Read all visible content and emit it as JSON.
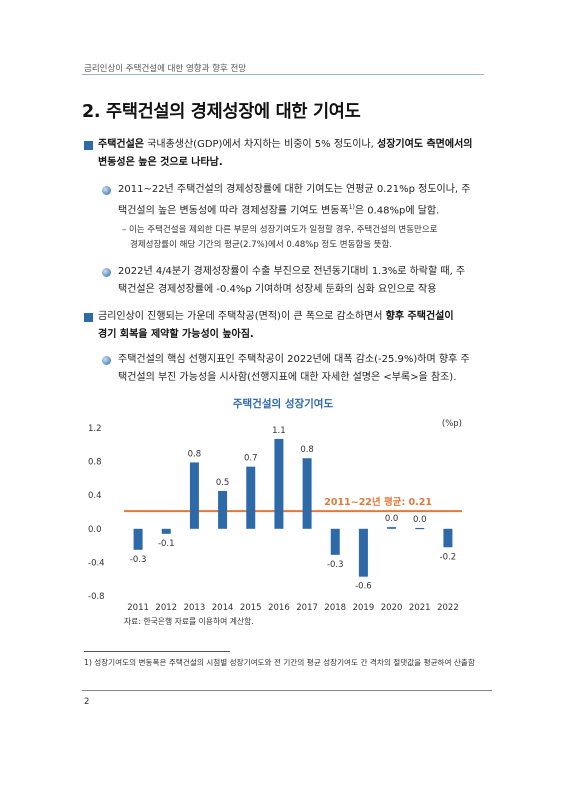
{
  "header": "금리인상이 주택건설에 대한 영향과 향후 전망",
  "section_title": "2. 주택건설의 경제성장에 대한 기여도",
  "b1": {
    "l1_a": "주택건설은",
    "l1_b": " 국내총생산(GDP)에서 차지하는 비중이 5% 정도이나, ",
    "l1_c": "성장기여도 측면에서의",
    "l2": "변동성은 높은 것으로 나타남."
  },
  "s1": {
    "l1": "2011~22년 주택건설의 경제성장률에 대한 기여도는 연평균 0.21%p 정도이나, 주",
    "l2_a": "택건설의 높은 변동성에 따라 경제성장률 기여도 변동폭",
    "l2_sup": "1)",
    "l2_b": "은 0.48%p에 달함."
  },
  "d1": {
    "l1": "– 이는 주택건설을 제외한 다른 부문의 성장기여도가 일정할 경우, 주택건설의 변동만으로",
    "l2": "경제성장률이 해당 기간의 평균(2.7%)에서 0.48%p 정도 변동함을 뜻함."
  },
  "s2": {
    "l1": "2022년 4/4분기 경제성장률이 수출 부진으로 전년동기대비 1.3%로 하락할 때, 주",
    "l2": "택건설은 경제성장률에 -0.4%p 기여하며 성장세 둔화의 심화 요인으로 작용"
  },
  "b2": {
    "l1_a": "금리인상이 진행되는 가운데 주택착공(면적)이 큰 폭으로 감소하면서 ",
    "l1_b": "향후 주택건설이",
    "l2": "경기 회복을 제약할 가능성이 높아짐."
  },
  "s3": {
    "l1": "주택건설의 핵심 선행지표인 주택착공이 2022년에 대폭 감소(-25.9%)하며 향후 주",
    "l2": "택건설의 부진 가능성을 시사함(선행지표에 대한 자세한 설명은 <부록>을 참조)."
  },
  "chart_data": {
    "type": "bar",
    "title": "주택건설의 성장기여도",
    "unit": "(%p)",
    "categories": [
      "2011",
      "2012",
      "2013",
      "2014",
      "2015",
      "2016",
      "2017",
      "2018",
      "2019",
      "2020",
      "2021",
      "2022"
    ],
    "values": [
      -0.25,
      -0.06,
      0.79,
      0.45,
      0.74,
      1.07,
      0.84,
      -0.31,
      -0.57,
      0.02,
      0.01,
      -0.22
    ],
    "labels": [
      "-0.3",
      "-0.1",
      "0.8",
      "0.5",
      "0.7",
      "1.1",
      "0.8",
      "-0.3",
      "-0.6",
      "0.0",
      "0.0",
      "-0.2"
    ],
    "ylim": [
      -0.8,
      1.2
    ],
    "yticks": [
      "1.2",
      "0.8",
      "0.4",
      "0.0",
      "-0.4",
      "-0.8"
    ],
    "average": 0.21,
    "average_label": "2011~22년 평균:  0.21",
    "bar_color": "#2e6aa8",
    "avg_color": "#e07a3a",
    "grid": false,
    "source": "자료: 한국은행 자료를 이용하여 계산함."
  },
  "footnote": "1) 성장기여도의 변동폭은 주택건설의 시점별 성장기여도와 전 기간의 평균 성장기여도 간 격차의 절댓값을 평균하여 산출함",
  "page_number": "2"
}
